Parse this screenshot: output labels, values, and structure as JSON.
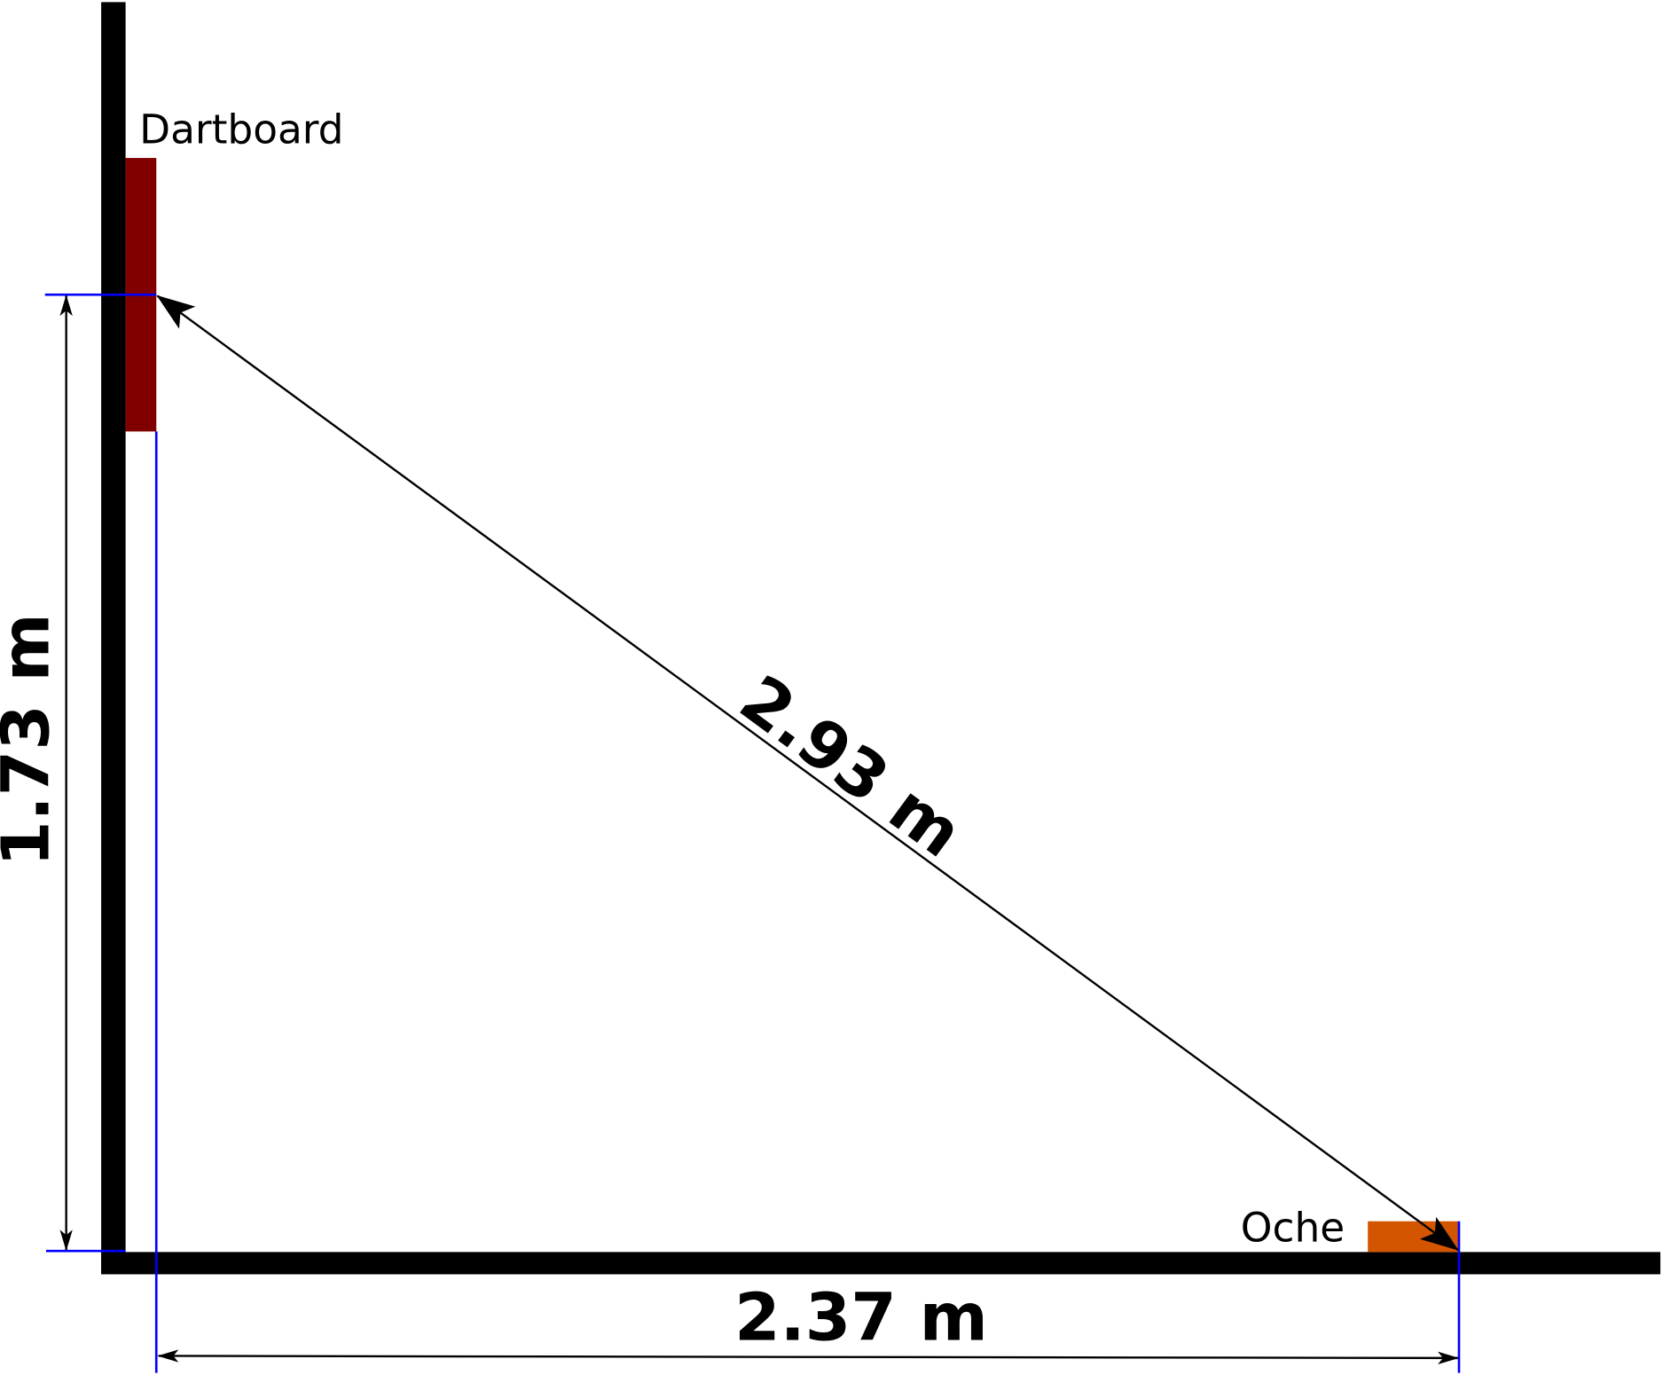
{
  "labels": {
    "dartboard": "Dartboard",
    "oche": "Oche"
  },
  "dimensions": {
    "height": "1.73 m",
    "floor_distance": "2.37 m",
    "diagonal": "2.93 m"
  },
  "colors": {
    "wall": "#000000",
    "dartboard": "#800000",
    "oche": "#d45500",
    "guide_lines": "#0000ff",
    "dimension_lines": "#000000"
  }
}
